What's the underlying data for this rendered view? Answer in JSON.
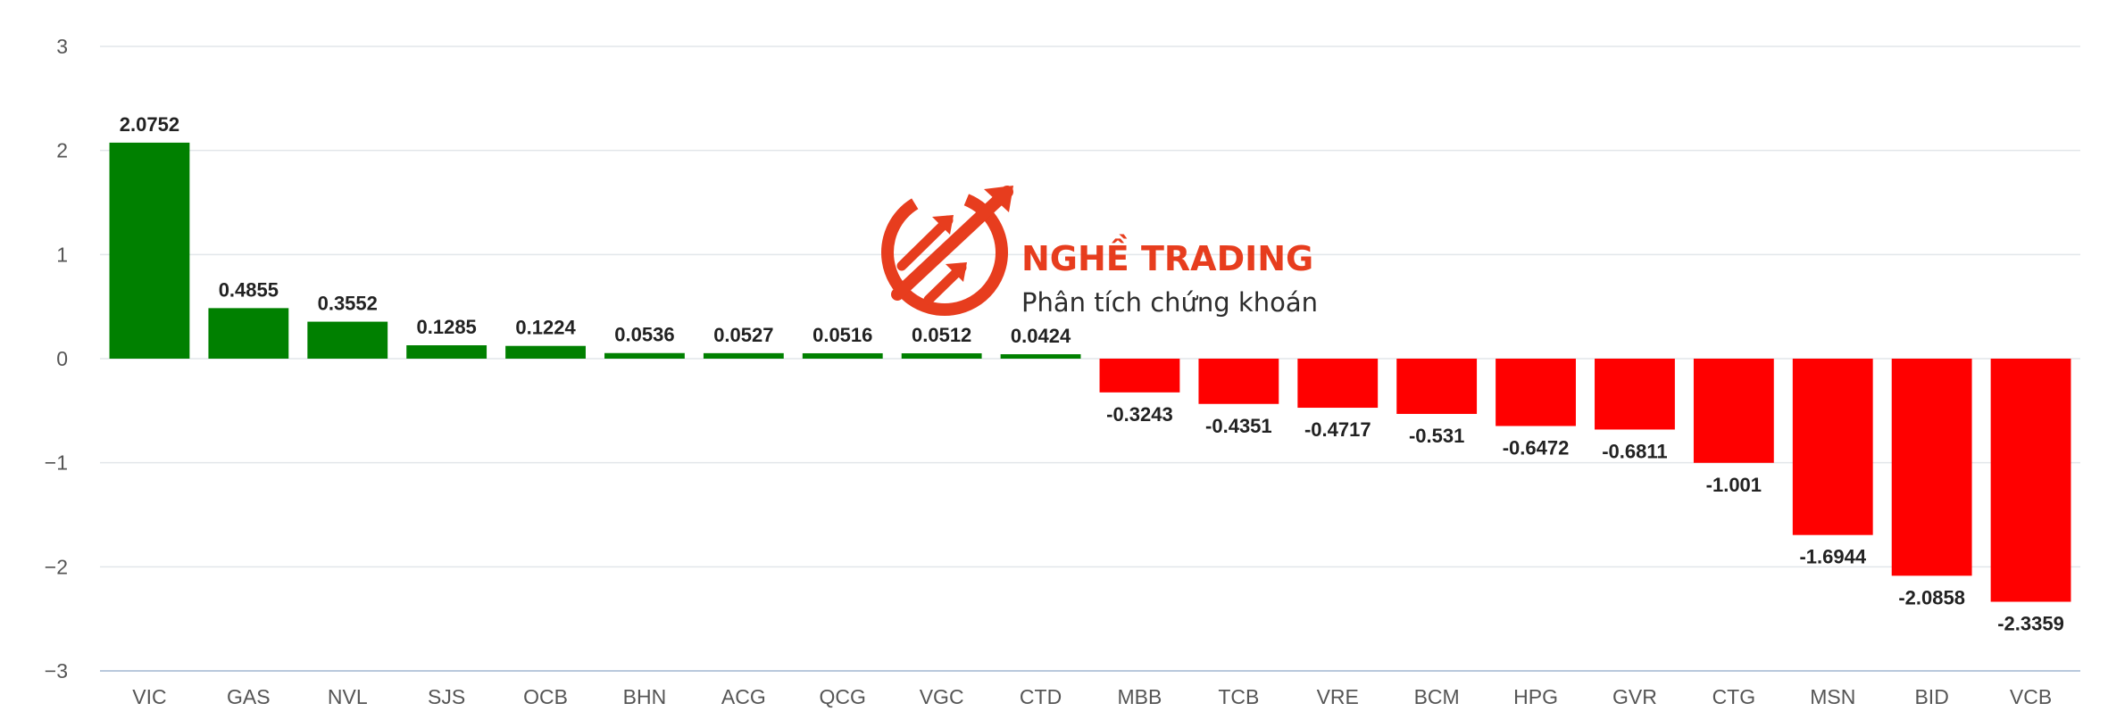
{
  "chart_data": {
    "type": "bar",
    "categories": [
      "VIC",
      "GAS",
      "NVL",
      "SJS",
      "OCB",
      "BHN",
      "ACG",
      "QCG",
      "VGC",
      "CTD",
      "MBB",
      "TCB",
      "VRE",
      "BCM",
      "HPG",
      "GVR",
      "CTG",
      "MSN",
      "BID",
      "VCB"
    ],
    "values": [
      2.0752,
      0.4855,
      0.3552,
      0.1285,
      0.1224,
      0.0536,
      0.0527,
      0.0516,
      0.0512,
      0.0424,
      -0.3243,
      -0.4351,
      -0.4717,
      -0.531,
      -0.6472,
      -0.6811,
      -1.001,
      -1.6944,
      -2.0858,
      -2.3359
    ],
    "data_labels": [
      "2.0752",
      "0.4855",
      "0.3552",
      "0.1285",
      "0.1224",
      "0.0536",
      "0.0527",
      "0.0516",
      "0.0512",
      "0.0424",
      "-0.3243",
      "-0.4351",
      "-0.4717",
      "-0.531",
      "-0.6472",
      "-0.6811",
      "-1.001",
      "-1.6944",
      "-2.0858",
      "-2.3359"
    ],
    "ylim": [
      -3,
      3
    ],
    "yticks": [
      3,
      2,
      1,
      0,
      -1,
      -2,
      -3
    ],
    "ytick_labels": [
      "3",
      "2",
      "1",
      "0",
      "−1",
      "−2",
      "−3"
    ],
    "grid": true,
    "positive_color": "#008000",
    "negative_color": "#ff0000",
    "title": "",
    "xlabel": "",
    "ylabel": ""
  },
  "watermark": {
    "brand": "NGHỀ TRADING",
    "tagline": "Phân tích chứng khoán",
    "icon": "trading-arrows-logo",
    "color": "#e63312"
  }
}
